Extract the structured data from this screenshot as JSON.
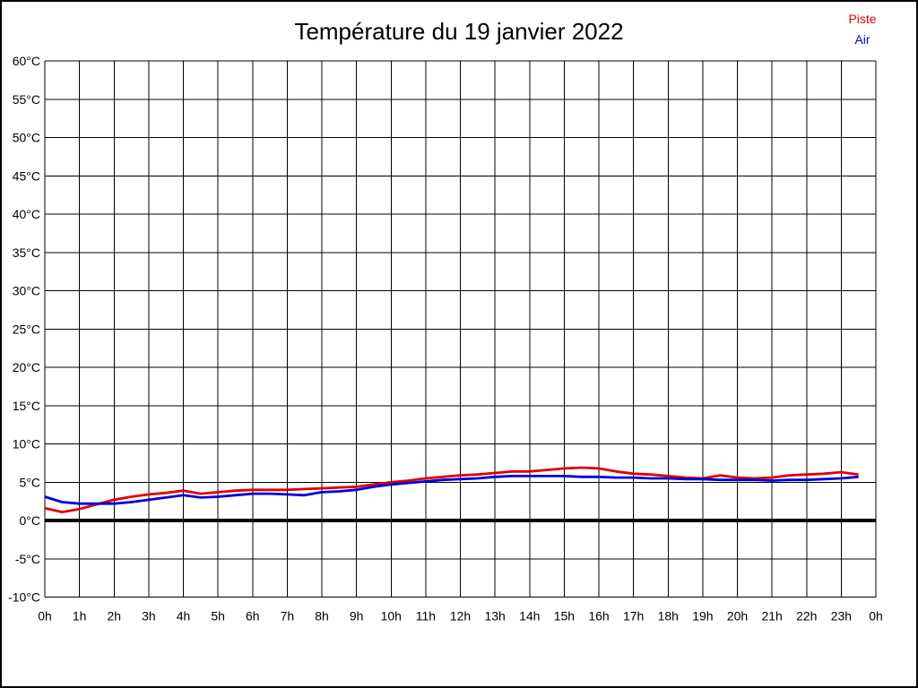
{
  "page": {
    "title": "Température du 19 janvier 2022",
    "background": "#ffffff",
    "border_color": "#000000"
  },
  "legend": {
    "items": [
      {
        "label": "Piste",
        "color": "#e00000"
      },
      {
        "label": "Air",
        "color": "#0000dd"
      }
    ]
  },
  "chart_data": {
    "type": "line",
    "title": "Température du 19 janvier 2022",
    "xlabel": "",
    "ylabel": "",
    "unit": "°C",
    "xlim": [
      0,
      24
    ],
    "ylim": [
      -10,
      60
    ],
    "grid": true,
    "grid_color": "#000000",
    "zero_line": {
      "value": 0,
      "color": "#000000",
      "width": 4
    },
    "legend_position": "top-right",
    "xtick_hours": [
      0,
      1,
      2,
      3,
      4,
      5,
      6,
      7,
      8,
      9,
      10,
      11,
      12,
      13,
      14,
      15,
      16,
      17,
      18,
      19,
      20,
      21,
      22,
      23,
      24
    ],
    "xtick_labels": [
      "0h",
      "1h",
      "2h",
      "3h",
      "4h",
      "5h",
      "6h",
      "7h",
      "8h",
      "9h",
      "10h",
      "11h",
      "12h",
      "13h",
      "14h",
      "15h",
      "16h",
      "17h",
      "18h",
      "19h",
      "20h",
      "21h",
      "22h",
      "23h",
      "0h"
    ],
    "ytick_values": [
      60,
      55,
      50,
      45,
      40,
      35,
      30,
      25,
      20,
      15,
      10,
      5,
      0,
      -5,
      -10
    ],
    "ytick_labels": [
      "60°C",
      "55°C",
      "50°C",
      "45°C",
      "40°C",
      "35°C",
      "30°C",
      "25°C",
      "20°C",
      "15°C",
      "10°C",
      "5°C",
      "0°C",
      "-5°C",
      "-10°C"
    ],
    "x": [
      0,
      0.5,
      1,
      1.5,
      2,
      2.5,
      3,
      3.5,
      4,
      4.5,
      5,
      5.5,
      6,
      6.5,
      7,
      7.5,
      8,
      8.5,
      9,
      9.5,
      10,
      10.5,
      11,
      11.5,
      12,
      12.5,
      13,
      13.5,
      14,
      14.5,
      15,
      15.5,
      16,
      16.5,
      17,
      17.5,
      18,
      18.5,
      19,
      19.5,
      20,
      20.5,
      21,
      21.5,
      22,
      22.5,
      23,
      23.5
    ],
    "series": [
      {
        "name": "Piste",
        "color": "#e00000",
        "values": [
          1.6,
          1.1,
          1.5,
          2.1,
          2.7,
          3.1,
          3.4,
          3.6,
          3.9,
          3.5,
          3.7,
          3.9,
          4.0,
          4.0,
          4.0,
          4.1,
          4.2,
          4.3,
          4.4,
          4.7,
          5.0,
          5.2,
          5.5,
          5.7,
          5.9,
          6.0,
          6.2,
          6.4,
          6.4,
          6.6,
          6.8,
          6.9,
          6.8,
          6.4,
          6.1,
          6.0,
          5.8,
          5.6,
          5.5,
          5.9,
          5.6,
          5.5,
          5.6,
          5.9,
          6.0,
          6.1,
          6.3,
          6.0
        ]
      },
      {
        "name": "Air",
        "color": "#0000dd",
        "values": [
          3.1,
          2.4,
          2.2,
          2.2,
          2.2,
          2.4,
          2.7,
          3.0,
          3.3,
          3.0,
          3.1,
          3.3,
          3.5,
          3.5,
          3.4,
          3.3,
          3.7,
          3.8,
          4.0,
          4.4,
          4.7,
          4.9,
          5.1,
          5.3,
          5.4,
          5.5,
          5.7,
          5.8,
          5.8,
          5.8,
          5.8,
          5.7,
          5.7,
          5.6,
          5.6,
          5.5,
          5.5,
          5.4,
          5.4,
          5.3,
          5.3,
          5.3,
          5.2,
          5.3,
          5.3,
          5.4,
          5.5,
          5.7
        ]
      }
    ]
  }
}
